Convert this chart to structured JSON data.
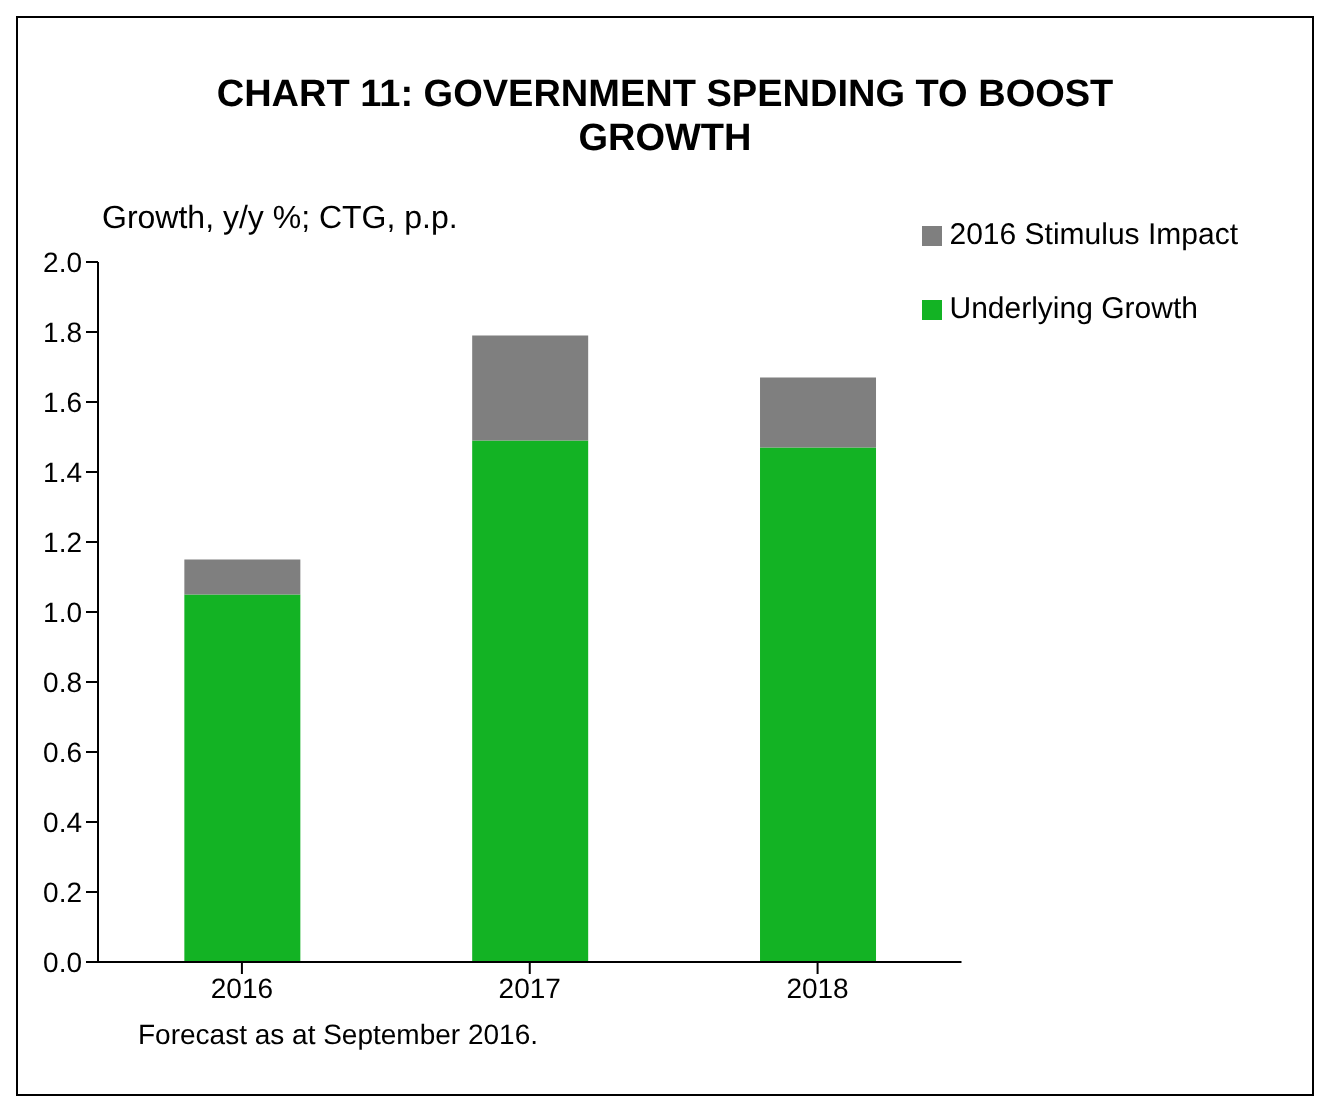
{
  "chart_data": {
    "type": "bar",
    "title": "CHART 11: GOVERNMENT SPENDING TO BOOST GROWTH",
    "ylabel": "Growth, y/y %; CTG, p.p.",
    "categories": [
      "2016",
      "2017",
      "2018"
    ],
    "stacked": true,
    "series": [
      {
        "name": "Underlying Growth",
        "color": "#13b324",
        "values": [
          1.05,
          1.49,
          1.47
        ]
      },
      {
        "name": "2016 Stimulus Impact",
        "color": "#7f7f7f",
        "values": [
          0.1,
          0.3,
          0.2
        ]
      }
    ],
    "ylim": [
      0,
      2
    ],
    "yticks": [
      {
        "value": 0,
        "label": "0.0"
      },
      {
        "value": 0.2,
        "label": "0.2"
      },
      {
        "value": 0.4,
        "label": "0.4"
      },
      {
        "value": 0.6,
        "label": "0.6"
      },
      {
        "value": 0.8,
        "label": "0.8"
      },
      {
        "value": 1,
        "label": "1.0"
      },
      {
        "value": 1.2,
        "label": "1.2"
      },
      {
        "value": 1.4,
        "label": "1.4"
      },
      {
        "value": 1.6,
        "label": "1.6"
      },
      {
        "value": 1.8,
        "label": "1.8"
      },
      {
        "value": 2,
        "label": "2.0"
      }
    ],
    "grid": false,
    "legend": "top right",
    "annotations": [
      "Forecast as at September 2016."
    ]
  }
}
